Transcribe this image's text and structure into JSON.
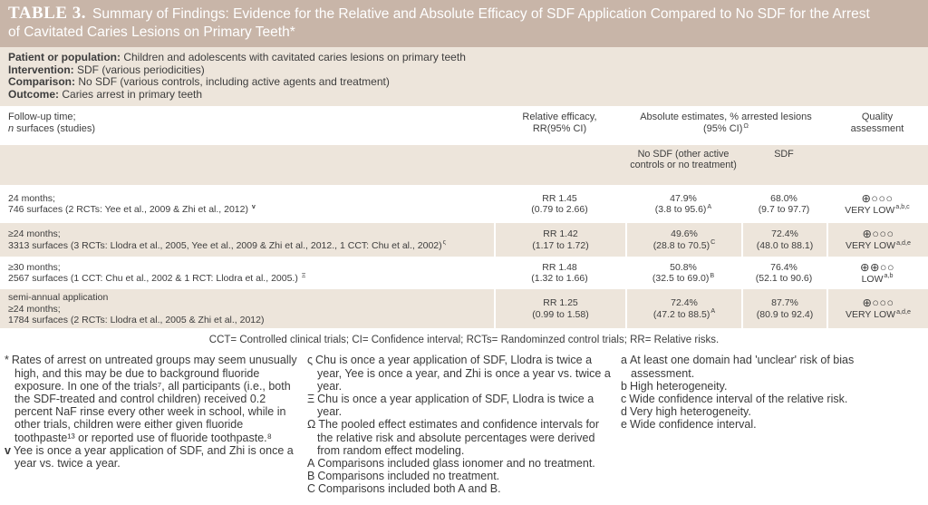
{
  "colors": {
    "title_bar_bg": "#c8b5a8",
    "title_text": "#ffffff",
    "band_bg": "#ede5db",
    "body_text": "#3d3d3d"
  },
  "title": {
    "prefix": "TABLE 3.",
    "text": "Summary of Findings: Evidence for the Relative and Absolute Efficacy of SDF Application Compared to No SDF for the Arrest of Cavitated Caries Lesions on Primary Teeth*"
  },
  "info": [
    {
      "label": "Patient or population:",
      "text": " Children and adolescents with cavitated caries lesions on primary teeth"
    },
    {
      "label": "Intervention:",
      "text": " SDF (various periodicities)"
    },
    {
      "label": "Comparison:",
      "text": " No SDF (various controls, including active agents and treatment)"
    },
    {
      "label": "Outcome:",
      "text": " Caries arrest in primary teeth"
    }
  ],
  "header": {
    "col1_line1": "Follow-up time;",
    "col1_italic": "n",
    "col1_rest": " surfaces (studies)",
    "col2_line1": "Relative efficacy,",
    "col2_line2": "RR(95% CI)",
    "col3_line1": "Absolute estimates, % arrested lesions",
    "col3_line2": "(95% CI)",
    "col3_sup": "Ω",
    "col4_line1": "Quality",
    "col4_line2": "assessment",
    "sub_no_sdf": "No SDF (other active controls or no treatment)",
    "sub_sdf": "SDF"
  },
  "rows": [
    {
      "line1": "24 months;",
      "line2": "746 surfaces (2 RCTs: Yee et al., 2009 & Zhi et al., 2012) ",
      "label_sup": "v",
      "rr": "RR 1.45",
      "rr_ci": "(0.79 to 2.66)",
      "no_sdf": "47.9%",
      "no_sdf_ci": "(3.8 to 95.6)",
      "no_sdf_sup": "A",
      "sdf": "68.0%",
      "sdf_ci": "(9.7 to 97.7)",
      "grade": "⊕○○○",
      "grade_label": "VERY LOW",
      "grade_sup": "a,b,c"
    },
    {
      "line1": "≥24 months;",
      "line2": "3313 surfaces (3 RCTs: Llodra et al., 2005, Yee et al., 2009 & Zhi et al., 2012., 1 CCT: Chu et al., 2002)",
      "label_sup": "ς",
      "rr": "RR 1.42",
      "rr_ci": "(1.17 to 1.72)",
      "no_sdf": "49.6%",
      "no_sdf_ci": "(28.8 to 70.5)",
      "no_sdf_sup": "C",
      "sdf": "72.4%",
      "sdf_ci": "(48.0 to 88.1)",
      "grade": "⊕○○○",
      "grade_label": "VERY LOW",
      "grade_sup": "a,d,e"
    },
    {
      "line1": "≥30 months;",
      "line2": "2567 surfaces (1 CCT: Chu et al., 2002 & 1 RCT: Llodra et al., 2005.) ",
      "label_sup": "Ξ",
      "rr": "RR 1.48",
      "rr_ci": "(1.32 to 1.66)",
      "no_sdf": "50.8%",
      "no_sdf_ci": "(32.5 to 69.0)",
      "no_sdf_sup": "B",
      "sdf": "76.4%",
      "sdf_ci": "(52.1 to 90.6)",
      "grade": "⊕⊕○○",
      "grade_label": "LOW",
      "grade_sup": "a,b"
    },
    {
      "line0": "semi-annual application",
      "line1": "≥24 months;",
      "line2": "1784 surfaces (2 RCTs: Llodra et al., 2005 & Zhi et al., 2012)",
      "rr": "RR 1.25",
      "rr_ci": "(0.99 to 1.58)",
      "no_sdf": "72.4%",
      "no_sdf_ci": "(47.2 to 88.5)",
      "no_sdf_sup": "A",
      "sdf": "87.7%",
      "sdf_ci": "(80.9 to 92.4)",
      "grade": "⊕○○○",
      "grade_label": "VERY LOW",
      "grade_sup": "a,d,e"
    }
  ],
  "abbreviations": "CCT= Controlled clinical trials; CI= Confidence interval; RCTs= Randominzed control trials; RR= Relative risks.",
  "footnotes": {
    "left": [
      {
        "marker": "*",
        "text": "Rates of arrest on untreated groups may seem unusually high, and this may be due to background fluoride exposure. In one of the trials⁷, all participants (i.e., both the SDF-treated and control children) received 0.2 percent NaF rinse every other week in school, while in other trials, children were either given fluoride toothpaste¹³ or reported use of fluoride toothpaste.⁸"
      },
      {
        "marker": "v",
        "text": "Yee is once a year application of SDF, and Zhi is once a year vs. twice a year."
      }
    ],
    "middle": [
      {
        "marker": "ς",
        "text": "Chu is once a year application of SDF, Llodra is twice a year, Yee is once a year, and Zhi is once a year vs. twice a year."
      },
      {
        "marker": "Ξ",
        "text": "Chu is once a year application of SDF, Llodra is twice a year."
      },
      {
        "marker": "Ω",
        "text": "The pooled effect estimates and confidence intervals for the relative risk and absolute percentages were derived from random effect modeling."
      },
      {
        "marker": "A",
        "text": "Comparisons included glass ionomer and no treatment."
      },
      {
        "marker": "B",
        "text": "Comparisons included no treatment."
      },
      {
        "marker": "C",
        "text": "Comparisons included both A and B."
      }
    ],
    "right": [
      {
        "marker": "a",
        "text": "At least one domain had 'unclear' risk of bias assessment."
      },
      {
        "marker": "b",
        "text": "High heterogeneity."
      },
      {
        "marker": "c",
        "text": "Wide confidence interval of the relative risk."
      },
      {
        "marker": "d",
        "text": "Very high heterogeneity."
      },
      {
        "marker": "e",
        "text": "Wide confidence interval."
      }
    ]
  }
}
